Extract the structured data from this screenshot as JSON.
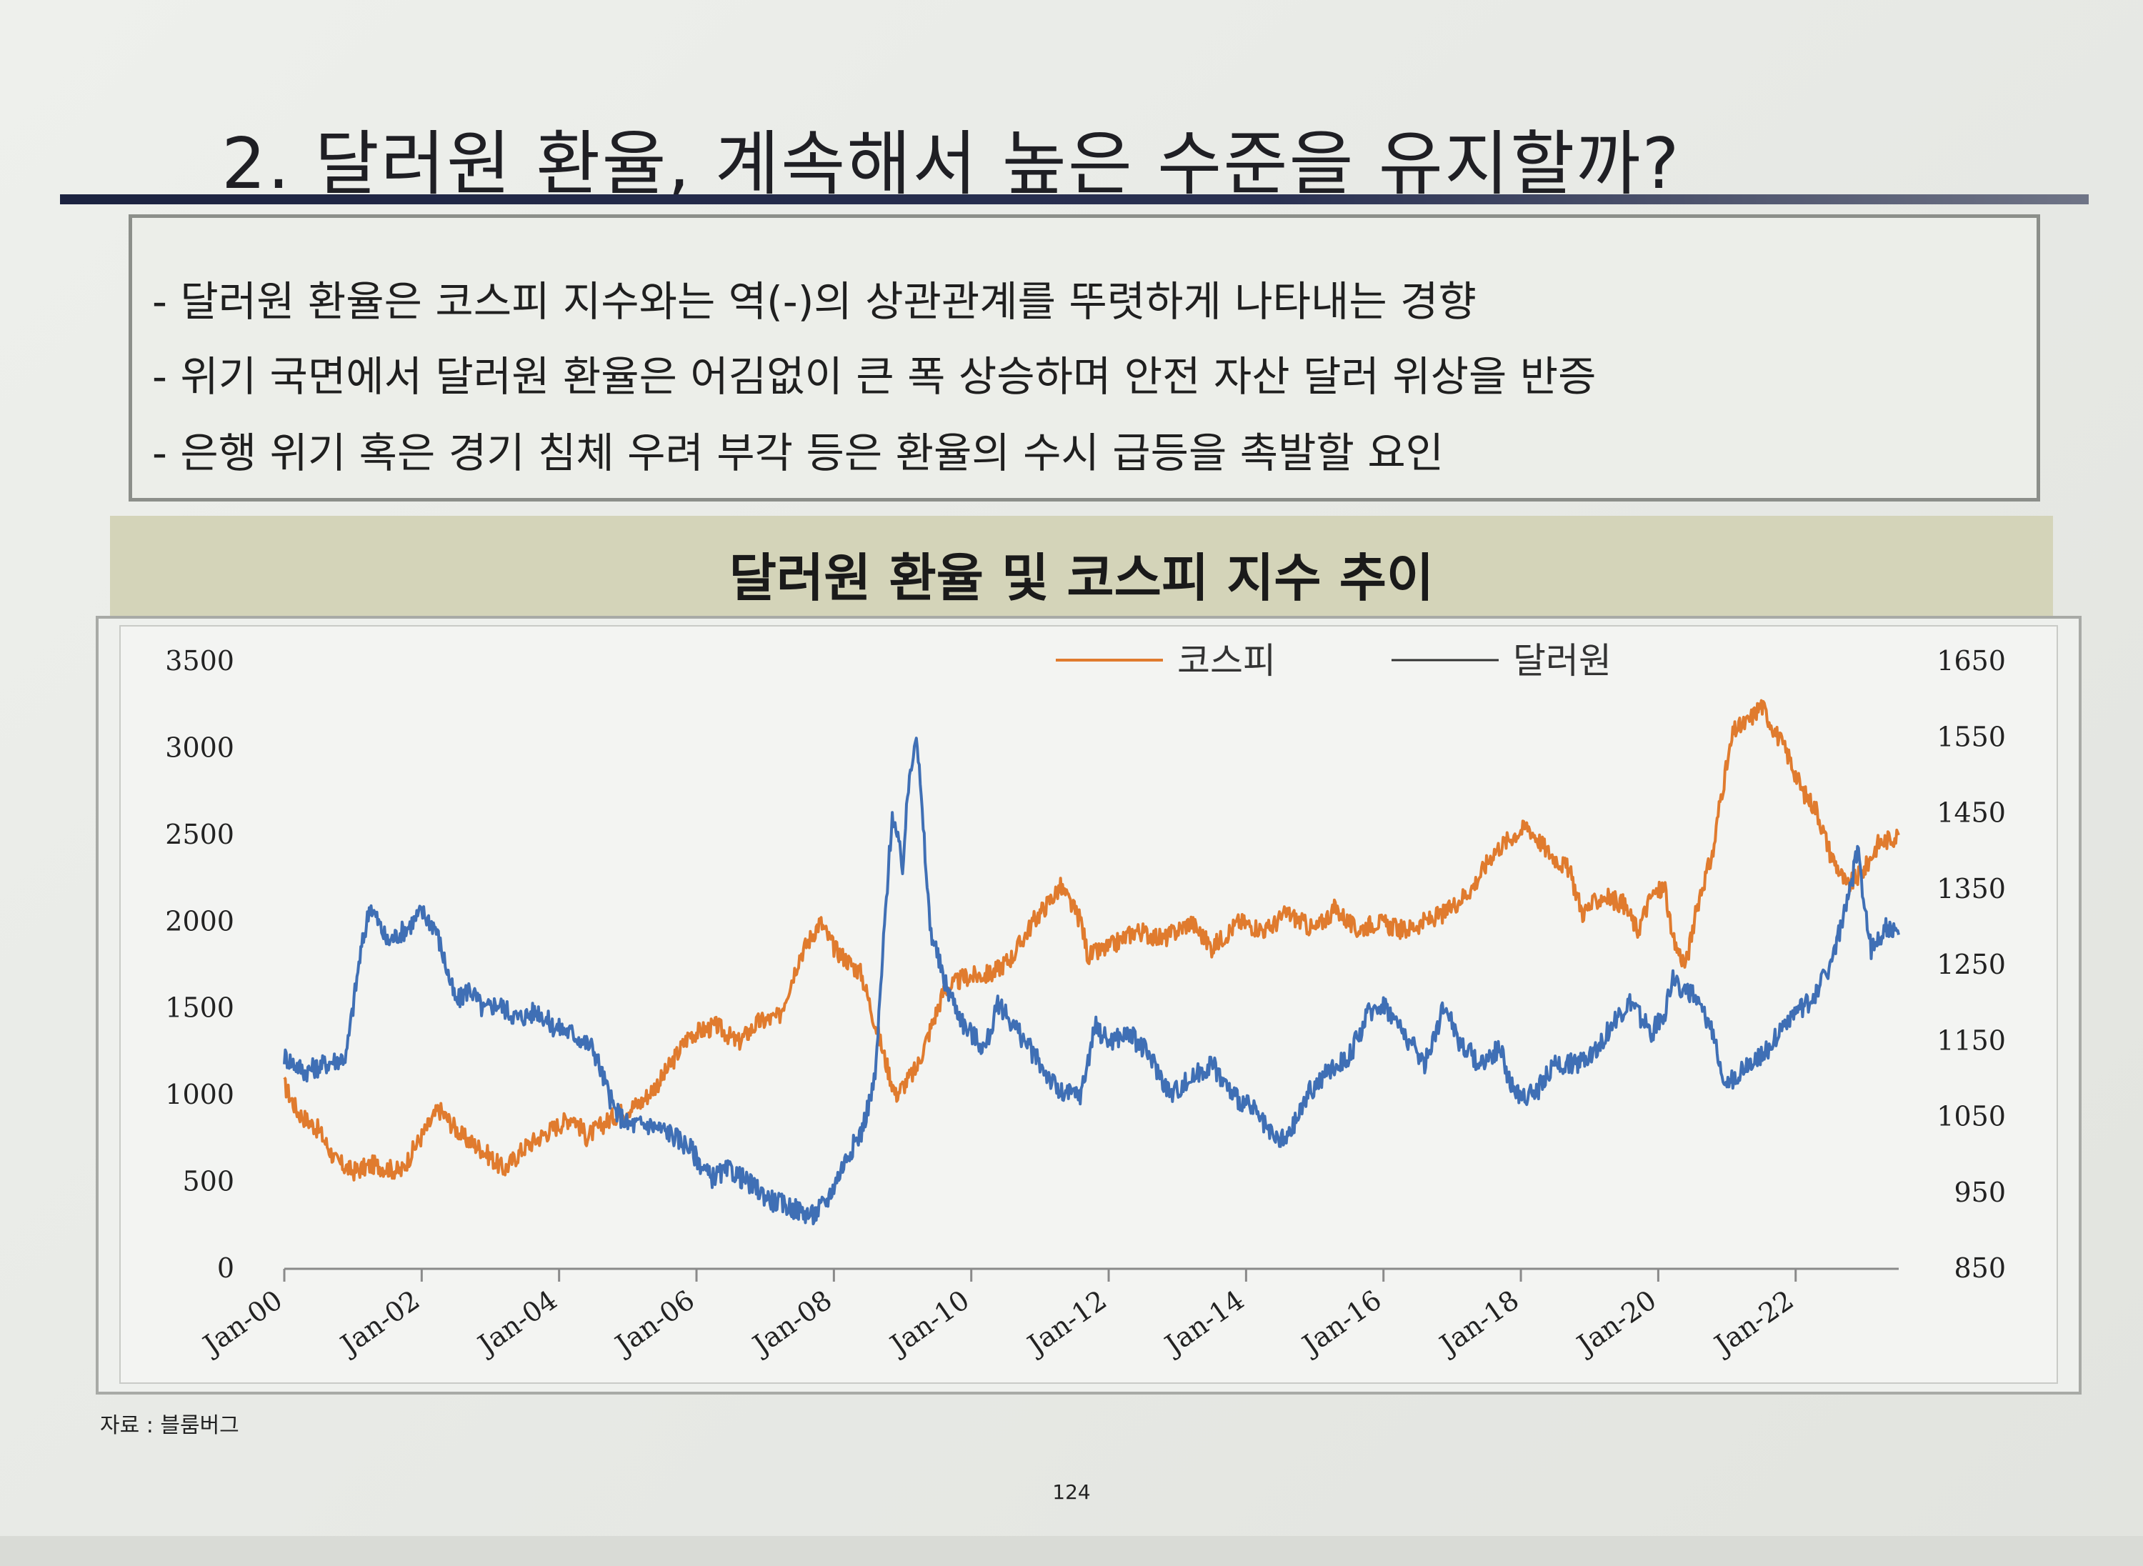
{
  "slide": {
    "title": "2. 달러원 환율, 계속해서 높은 수준을 유지할까?",
    "bullets": [
      "- 달러원 환율은 코스피 지수와는 역(-)의 상관관계를 뚜렷하게 나타내는 경향",
      "- 위기 국면에서 달러원 환율은 어김없이 큰 폭 상승하며 안전 자산 달러 위상을 반증",
      "- 은행 위기 혹은 경기 침체 우려 부각 등은 환율의 수시 급등을 촉발할 요인"
    ],
    "source": "자료 : 블룸버그",
    "page_number": "124"
  },
  "colors": {
    "kospi": "#e07b2e",
    "usdkrw": "#3f6fb5",
    "header_band": "#d4d4b9"
  },
  "chart_data": {
    "type": "line",
    "title": "달러원 환율 및 코스피 지수 추이",
    "legend_position": "top-center",
    "x_ticks": [
      "Jan-00",
      "Jan-02",
      "Jan-04",
      "Jan-06",
      "Jan-08",
      "Jan-10",
      "Jan-12",
      "Jan-14",
      "Jan-16",
      "Jan-18",
      "Jan-20",
      "Jan-22"
    ],
    "x_range": [
      2000.0,
      2023.5
    ],
    "y_left": {
      "range": [
        0,
        3500
      ],
      "ticks": [
        "3500",
        "3000",
        "2500",
        "2000",
        "1500",
        "1000",
        "500",
        "0"
      ]
    },
    "y_right": {
      "range": [
        850,
        1650
      ],
      "ticks": [
        "1650",
        "1550",
        "1450",
        "1350",
        "1250",
        "1150",
        "1050",
        "950",
        "850"
      ]
    },
    "series": [
      {
        "name": "코스피",
        "axis": "left",
        "x": [
          2000.0,
          2000.2,
          2000.5,
          2000.75,
          2001.0,
          2001.3,
          2001.7,
          2001.9,
          2002.25,
          2002.6,
          2002.9,
          2003.2,
          2003.5,
          2003.8,
          2004.2,
          2004.4,
          2004.8,
          2005.2,
          2005.5,
          2005.9,
          2006.3,
          2006.6,
          2006.9,
          2007.2,
          2007.5,
          2007.8,
          2008.0,
          2008.4,
          2008.75,
          2008.9,
          2009.2,
          2009.6,
          2009.9,
          2010.3,
          2010.6,
          2010.9,
          2011.3,
          2011.6,
          2011.7,
          2012.0,
          2012.4,
          2012.8,
          2013.2,
          2013.5,
          2013.9,
          2014.3,
          2014.6,
          2015.0,
          2015.3,
          2015.6,
          2015.9,
          2016.3,
          2016.6,
          2016.9,
          2017.3,
          2017.6,
          2017.9,
          2018.1,
          2018.4,
          2018.7,
          2018.9,
          2019.2,
          2019.5,
          2019.7,
          2019.9,
          2020.1,
          2020.2,
          2020.4,
          2020.6,
          2020.8,
          2020.9,
          2021.1,
          2021.3,
          2021.5,
          2021.7,
          2021.9,
          2022.1,
          2022.3,
          2022.5,
          2022.75,
          2023.0,
          2023.2,
          2023.5
        ],
        "values": [
          1060,
          900,
          800,
          620,
          560,
          600,
          560,
          700,
          920,
          760,
          680,
          570,
          700,
          780,
          880,
          760,
          880,
          960,
          1100,
          1350,
          1400,
          1300,
          1420,
          1450,
          1800,
          2000,
          1850,
          1700,
          1200,
          1000,
          1150,
          1600,
          1680,
          1700,
          1800,
          2000,
          2200,
          2000,
          1800,
          1850,
          1950,
          1900,
          2000,
          1850,
          2000,
          1950,
          2050,
          1950,
          2080,
          1950,
          2000,
          1950,
          2000,
          2050,
          2200,
          2400,
          2500,
          2550,
          2400,
          2300,
          2050,
          2150,
          2100,
          1950,
          2150,
          2200,
          1900,
          1750,
          2150,
          2400,
          2700,
          3100,
          3150,
          3250,
          3100,
          2950,
          2750,
          2650,
          2400,
          2200,
          2300,
          2450,
          2500
        ]
      },
      {
        "name": "달러원",
        "axis": "right",
        "x": [
          2000.0,
          2000.3,
          2000.6,
          2000.9,
          2001.1,
          2001.25,
          2001.5,
          2001.8,
          2002.0,
          2002.2,
          2002.5,
          2002.7,
          2002.9,
          2003.1,
          2003.4,
          2003.7,
          2003.9,
          2004.2,
          2004.5,
          2004.8,
          2005.0,
          2005.3,
          2005.6,
          2005.9,
          2006.2,
          2006.5,
          2006.8,
          2007.1,
          2007.4,
          2007.7,
          2007.9,
          2008.2,
          2008.4,
          2008.6,
          2008.75,
          2008.85,
          2009.0,
          2009.1,
          2009.2,
          2009.4,
          2009.6,
          2009.9,
          2010.2,
          2010.4,
          2010.7,
          2011.0,
          2011.3,
          2011.6,
          2011.8,
          2012.0,
          2012.3,
          2012.6,
          2012.9,
          2013.2,
          2013.5,
          2013.8,
          2014.1,
          2014.4,
          2014.6,
          2014.9,
          2015.2,
          2015.5,
          2015.8,
          2016.0,
          2016.3,
          2016.6,
          2016.9,
          2017.1,
          2017.4,
          2017.7,
          2017.9,
          2018.2,
          2018.5,
          2018.8,
          2019.1,
          2019.4,
          2019.6,
          2019.9,
          2020.1,
          2020.2,
          2020.5,
          2020.8,
          2021.0,
          2021.3,
          2021.6,
          2021.9,
          2022.2,
          2022.5,
          2022.75,
          2022.9,
          2023.1,
          2023.3,
          2023.5
        ],
        "values": [
          1130,
          1110,
          1120,
          1130,
          1260,
          1330,
          1280,
          1300,
          1320,
          1300,
          1200,
          1220,
          1190,
          1200,
          1180,
          1190,
          1170,
          1160,
          1140,
          1060,
          1040,
          1040,
          1030,
          1010,
          970,
          980,
          960,
          940,
          930,
          920,
          940,
          1000,
          1030,
          1100,
          1320,
          1450,
          1380,
          1500,
          1560,
          1300,
          1230,
          1170,
          1140,
          1200,
          1160,
          1120,
          1080,
          1080,
          1170,
          1150,
          1160,
          1130,
          1080,
          1100,
          1120,
          1080,
          1060,
          1020,
          1020,
          1080,
          1110,
          1130,
          1190,
          1200,
          1160,
          1120,
          1200,
          1150,
          1120,
          1140,
          1080,
          1080,
          1120,
          1120,
          1140,
          1180,
          1200,
          1160,
          1190,
          1230,
          1210,
          1160,
          1090,
          1120,
          1140,
          1180,
          1200,
          1250,
          1330,
          1400,
          1270,
          1300,
          1290
        ]
      }
    ]
  }
}
